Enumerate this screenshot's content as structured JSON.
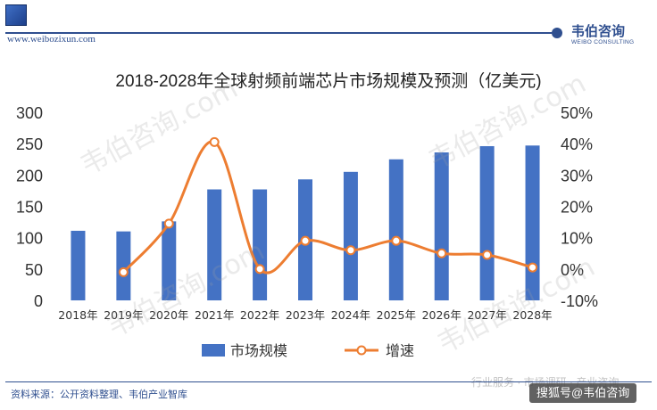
{
  "header": {
    "site_url": "www.weibozixun.com",
    "brand_cn": "韦伯咨询",
    "brand_en": "WEIBO CONSULTING"
  },
  "watermark_text": "韦伯咨询.com",
  "footer": {
    "source": "资料来源：公开资料整理、韦伯产业智库",
    "faded_text": "行业服务 · 市场调研 · 产业咨询",
    "badge": "搜狐号@韦伯咨询"
  },
  "colors": {
    "bar": "#4472c4",
    "line": "#ed7d31",
    "brand": "#2f4f8f"
  },
  "chart_data": {
    "type": "bar",
    "title": "2018-2028年全球射频前端芯片市场规模及预测（亿美元)",
    "categories": [
      "2018年",
      "2019年",
      "2020年",
      "2021年",
      "2022年",
      "2023年",
      "2024年",
      "2025年",
      "2026年",
      "2027年",
      "2028年"
    ],
    "series": [
      {
        "name": "市场规模",
        "type": "bar",
        "axis": "left",
        "values": [
          111,
          110,
          126,
          177,
          177,
          193,
          205,
          225,
          236,
          246,
          247
        ]
      },
      {
        "name": "增速",
        "type": "line",
        "axis": "right",
        "unit": "%",
        "values": [
          null,
          -1,
          14.5,
          40.5,
          0,
          9,
          6,
          9,
          5,
          4.5,
          0.5
        ]
      }
    ],
    "left_axis": {
      "ylim": [
        0,
        300
      ],
      "ticks": [
        "0",
        "50",
        "100",
        "150",
        "200",
        "250",
        "300"
      ]
    },
    "right_axis": {
      "ylim": [
        -10,
        50
      ],
      "ticks": [
        "-10%",
        "0%",
        "10%",
        "20%",
        "30%",
        "40%",
        "50%"
      ]
    },
    "legend": {
      "position": "bottom"
    },
    "grid": false
  }
}
